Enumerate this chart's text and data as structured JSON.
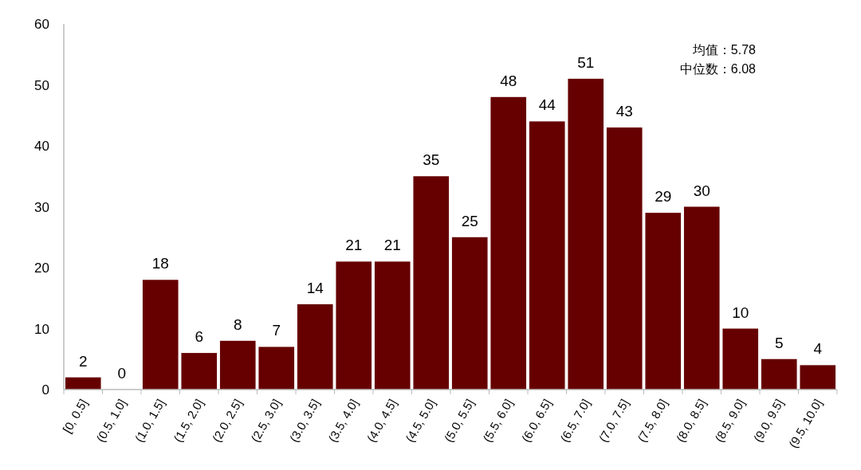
{
  "chart_data": {
    "type": "bar",
    "categories": [
      "[0, 0.5]",
      "(0.5, 1.0]",
      "(1.0, 1.5]",
      "(1.5, 2.0]",
      "(2.0, 2.5]",
      "(2.5, 3.0]",
      "(3.0, 3.5]",
      "(3.5, 4.0]",
      "(4.0, 4.5]",
      "(4.5, 5.0]",
      "(5.0, 5.5]",
      "(5.5, 6.0]",
      "(6.0, 6.5]",
      "(6.5, 7.0]",
      "(7.0, 7.5]",
      "(7.5, 8.0]",
      "(8.0, 8.5]",
      "(8.5, 9.0]",
      "(9.0, 9.5]",
      "(9.5, 10.0]"
    ],
    "values": [
      2,
      0,
      18,
      6,
      8,
      7,
      14,
      21,
      21,
      35,
      25,
      48,
      44,
      51,
      43,
      29,
      30,
      10,
      5,
      4
    ],
    "color": "#660000",
    "ylim": [
      0,
      60
    ],
    "yticks": [
      0,
      10,
      20,
      30,
      40,
      50,
      60
    ],
    "data_labels": true,
    "annotations": [
      "均值：5.78",
      "中位数：6.08"
    ]
  }
}
